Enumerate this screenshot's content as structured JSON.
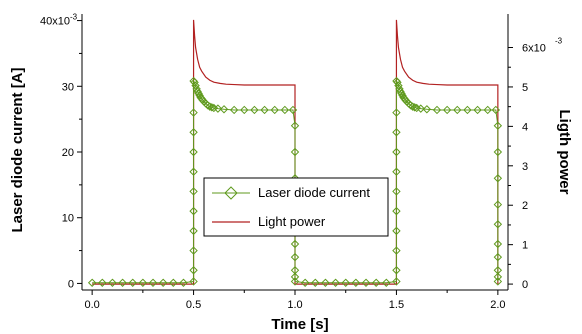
{
  "chart_data": {
    "type": "line",
    "xlabel": "Time [s]",
    "ylabel_left": "Laser diode current [A]",
    "ylabel_right": "Ligth power",
    "xlim": [
      -0.05,
      2.05
    ],
    "ylim_left": [
      -1,
      41
    ],
    "ylim_right": [
      -0.15,
      6.85
    ],
    "x_ticks": [
      0.0,
      0.5,
      1.0,
      1.5,
      2.0
    ],
    "x_tick_labels": [
      "0.0",
      "0.5",
      "1.0",
      "1.5",
      "2.0"
    ],
    "y_left_ticks": [
      0,
      10,
      20,
      30,
      40
    ],
    "y_left_tick_labels": [
      "0",
      "10",
      "20",
      "30",
      "40x10"
    ],
    "y_left_top_exponent": "-3",
    "y_right_ticks": [
      0,
      1,
      2,
      3,
      4,
      5,
      6
    ],
    "y_right_tick_labels": [
      "0",
      "1",
      "2",
      "3",
      "4",
      "5",
      "6x10"
    ],
    "y_right_top_exponent": "-3",
    "grid": false,
    "legend_position": "center",
    "series": [
      {
        "name": "Laser diode current",
        "axis": "left",
        "color": "#5f9a1e",
        "marker": "diamond",
        "x": [
          0,
          0.05,
          0.1,
          0.15,
          0.2,
          0.25,
          0.3,
          0.35,
          0.4,
          0.45,
          0.5,
          0.5,
          0.5,
          0.5,
          0.5,
          0.5,
          0.5,
          0.5,
          0.5,
          0.5,
          0.5,
          0.505,
          0.51,
          0.515,
          0.52,
          0.525,
          0.53,
          0.535,
          0.54,
          0.545,
          0.55,
          0.56,
          0.57,
          0.58,
          0.59,
          0.6,
          0.62,
          0.65,
          0.7,
          0.75,
          0.8,
          0.85,
          0.9,
          0.95,
          0.99,
          1.0,
          1.0,
          1.0,
          1.0,
          1.0,
          1.0,
          1.0,
          1.0,
          1.0,
          1.0,
          1.05,
          1.1,
          1.15,
          1.2,
          1.25,
          1.3,
          1.35,
          1.4,
          1.45,
          1.5,
          1.5,
          1.5,
          1.5,
          1.5,
          1.5,
          1.5,
          1.5,
          1.5,
          1.5,
          1.5,
          1.505,
          1.51,
          1.515,
          1.52,
          1.525,
          1.53,
          1.535,
          1.54,
          1.545,
          1.55,
          1.56,
          1.57,
          1.58,
          1.59,
          1.6,
          1.62,
          1.65,
          1.7,
          1.75,
          1.8,
          1.85,
          1.9,
          1.95,
          1.99,
          2.0,
          2.0,
          2.0,
          2.0,
          2.0,
          2.0,
          2.0,
          2.0,
          2.0,
          2.0
        ],
        "y": [
          0.1,
          0.1,
          0.1,
          0.1,
          0.1,
          0.1,
          0.1,
          0.1,
          0.1,
          0.1,
          0.3,
          2,
          5,
          8,
          11,
          14,
          17,
          20,
          23,
          26,
          30.8,
          30.6,
          30.1,
          29.6,
          29.2,
          28.9,
          28.6,
          28.3,
          28.1,
          27.9,
          27.7,
          27.4,
          27.1,
          26.9,
          26.8,
          26.7,
          26.6,
          26.5,
          26.4,
          26.4,
          26.4,
          26.4,
          26.4,
          26.4,
          26.4,
          24,
          20,
          16,
          12,
          9,
          6,
          4,
          2,
          1,
          0.3,
          0.1,
          0.1,
          0.1,
          0.1,
          0.1,
          0.1,
          0.1,
          0.1,
          0.1,
          0.3,
          2,
          5,
          8,
          11,
          14,
          17,
          20,
          23,
          26,
          30.8,
          30.6,
          30.1,
          29.6,
          29.2,
          28.9,
          28.6,
          28.3,
          28.1,
          27.9,
          27.7,
          27.4,
          27.1,
          26.9,
          26.8,
          26.7,
          26.6,
          26.5,
          26.4,
          26.4,
          26.4,
          26.4,
          26.4,
          26.4,
          26.4,
          24,
          20,
          16,
          12,
          9,
          6,
          4,
          2,
          1,
          0.3
        ]
      },
      {
        "name": "Light power",
        "axis": "right",
        "color": "#b22222",
        "marker": "none",
        "x": [
          0,
          0.499,
          0.5,
          0.5,
          0.505,
          0.51,
          0.52,
          0.53,
          0.54,
          0.56,
          0.58,
          0.6,
          0.63,
          0.66,
          0.7,
          0.75,
          0.8,
          0.9,
          0.999,
          1.0,
          1.0,
          1.499,
          1.5,
          1.5,
          1.505,
          1.51,
          1.52,
          1.53,
          1.54,
          1.56,
          1.58,
          1.6,
          1.63,
          1.66,
          1.7,
          1.75,
          1.8,
          1.9,
          1.999,
          2.0,
          2.0
        ],
        "y": [
          0,
          0,
          0,
          6.7,
          6.3,
          6.0,
          5.7,
          5.5,
          5.4,
          5.25,
          5.17,
          5.12,
          5.09,
          5.07,
          5.06,
          5.05,
          5.05,
          5.05,
          5.05,
          5.05,
          0,
          0,
          0,
          6.7,
          6.3,
          6.0,
          5.7,
          5.5,
          5.4,
          5.25,
          5.17,
          5.12,
          5.09,
          5.07,
          5.06,
          5.05,
          5.05,
          5.05,
          5.05,
          5.05,
          0
        ]
      }
    ]
  }
}
